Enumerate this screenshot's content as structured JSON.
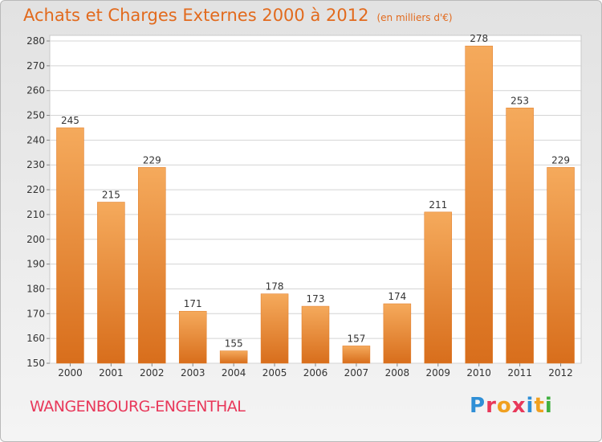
{
  "title": "Achats et Charges Externes 2000 à 2012",
  "subtitle": "(en milliers d'€)",
  "town": "WANGENBOURG-ENGENTHAL",
  "brand": {
    "letters": [
      "P",
      "r",
      "o",
      "x",
      "i",
      "t",
      "i"
    ],
    "colors": [
      "#2f8fd6",
      "#e8385a",
      "#f0a020",
      "#e8385a",
      "#2f8fd6",
      "#f0a020",
      "#40b040"
    ]
  },
  "colors": {
    "bar": "#f0923a",
    "bar_light": "#f5aa5c",
    "bar_dark": "#d86e1c",
    "accent": "#e26a1d"
  },
  "chart_data": {
    "type": "bar",
    "categories": [
      "2000",
      "2001",
      "2002",
      "2003",
      "2004",
      "2005",
      "2006",
      "2007",
      "2008",
      "2009",
      "2010",
      "2011",
      "2012"
    ],
    "values": [
      245,
      215,
      229,
      171,
      155,
      178,
      173,
      157,
      174,
      211,
      278,
      253,
      229
    ],
    "value_labels": [
      "245",
      "215",
      "229",
      "171",
      "155",
      "178",
      "173",
      "157",
      "174",
      "211",
      "278",
      "253",
      "229"
    ],
    "ylim": [
      150,
      280
    ],
    "yticks": [
      150,
      160,
      170,
      180,
      190,
      200,
      210,
      220,
      230,
      240,
      250,
      260,
      270,
      280
    ],
    "ytick_labels": [
      "150",
      "160",
      "170",
      "180",
      "190",
      "200",
      "210",
      "220",
      "230",
      "240",
      "250",
      "260",
      "270",
      "280"
    ],
    "grid": true
  }
}
